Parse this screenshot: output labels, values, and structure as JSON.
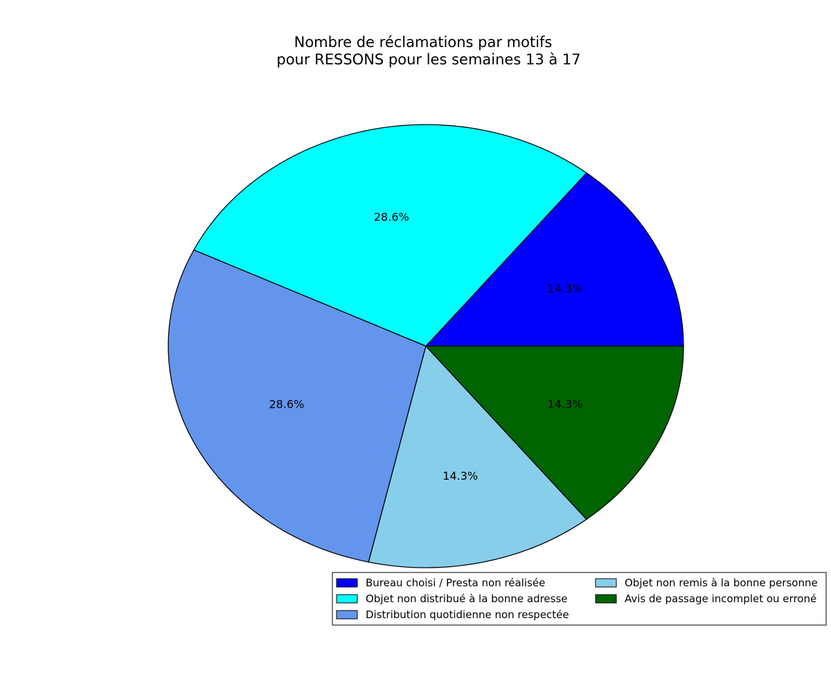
{
  "chart_data": {
    "type": "pie",
    "title_lines": [
      "Nombre de réclamations par motifs",
      "pour RESSONS pour les semaines 13 à 17"
    ],
    "slices": [
      {
        "label": "Bureau choisi / Presta non réalisée",
        "value": 1,
        "pct_label": "14.3%",
        "color": "#0000ff"
      },
      {
        "label": "Objet non distribué à la bonne adresse",
        "value": 2,
        "pct_label": "28.6%",
        "color": "#00ffff"
      },
      {
        "label": "Distribution quotidienne non respectée",
        "value": 2,
        "pct_label": "28.6%",
        "color": "#6495ed"
      },
      {
        "label": "Objet non remis à la bonne personne",
        "value": 1,
        "pct_label": "14.3%",
        "color": "#87ceeb"
      },
      {
        "label": "Avis de passage incomplet ou erroné",
        "value": 1,
        "pct_label": "14.3%",
        "color": "#006400"
      }
    ],
    "start_angle_deg": 0,
    "direction": "counterclockwise",
    "legend_placement": "lower-right",
    "legend_columns": 2
  }
}
